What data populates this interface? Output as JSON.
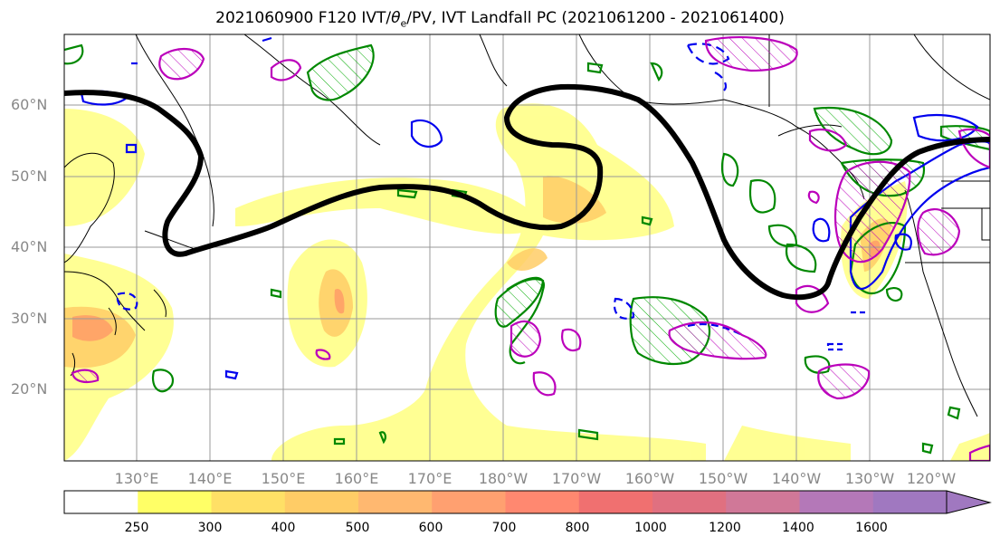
{
  "title": {
    "part1": "2021060900 F120 IVT/",
    "theta": "θ",
    "theta_sub": "e",
    "part2": "/PV, IVT Landfall PC (2021061200 - 2021061400)"
  },
  "map": {
    "lat_labels": [
      "60°N",
      "50°N",
      "40°N",
      "30°N",
      "20°N"
    ],
    "lon_labels": [
      "130°E",
      "140°E",
      "150°E",
      "160°E",
      "170°E",
      "180°W",
      "170°W",
      "160°W",
      "150°W",
      "140°W",
      "130°W",
      "120°W"
    ],
    "contour_colors": {
      "theta_e_pv": "#000000",
      "pv_positive": "#00aa00",
      "pv_negative": "#0000ff",
      "ivt_landfall": "#bb00bb"
    }
  },
  "colorbar": {
    "ticks": [
      "250",
      "300",
      "400",
      "500",
      "600",
      "700",
      "800",
      "1000",
      "1200",
      "1400",
      "1600"
    ],
    "colors": [
      "#ffff66",
      "#ffe066",
      "#ffcc66",
      "#ffb870",
      "#ffa070",
      "#ff8870",
      "#f07070",
      "#e07080",
      "#d07898",
      "#b478b8",
      "#a078c0"
    ],
    "extend": "max"
  }
}
